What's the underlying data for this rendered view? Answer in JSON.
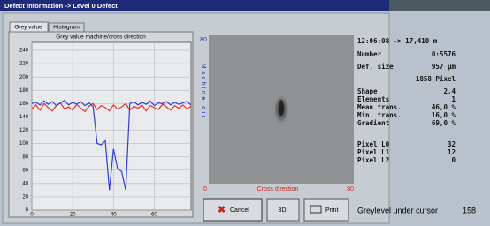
{
  "window": {
    "title": "Defect information  ->  Level 0  Defect"
  },
  "tabs": [
    "Grey value",
    "Histogram"
  ],
  "chart_data": {
    "type": "line",
    "title": "Grey value machine/cross direction",
    "x": [
      0,
      2,
      4,
      6,
      8,
      10,
      12,
      14,
      16,
      18,
      20,
      22,
      24,
      26,
      28,
      30,
      32,
      34,
      36,
      38,
      40,
      42,
      44,
      46,
      48,
      50,
      52,
      54,
      56,
      58,
      60,
      62,
      64,
      66,
      68,
      70,
      72,
      74,
      76,
      78
    ],
    "series": [
      {
        "color": "#e03030",
        "values": [
          152,
          158,
          150,
          160,
          154,
          149,
          157,
          161,
          152,
          155,
          150,
          159,
          153,
          148,
          156,
          160,
          151,
          157,
          154,
          149,
          158,
          152,
          155,
          160,
          150,
          156,
          153,
          158,
          149,
          157,
          154,
          151,
          159,
          155,
          150,
          157,
          153,
          158,
          152,
          156
        ]
      },
      {
        "color": "#3040d0",
        "values": [
          160,
          162,
          158,
          164,
          159,
          163,
          157,
          161,
          165,
          158,
          162,
          159,
          163,
          157,
          161,
          156,
          100,
          98,
          104,
          30,
          92,
          62,
          58,
          30,
          160,
          163,
          158,
          162,
          159,
          164,
          157,
          161,
          160,
          163,
          158,
          162,
          159,
          161,
          163,
          158
        ]
      }
    ],
    "xlim": [
      0,
      78
    ],
    "xticks": [
      0,
      20,
      40,
      60
    ],
    "ylim": [
      0,
      252
    ],
    "yticks": [
      0,
      20,
      40,
      60,
      80,
      100,
      120,
      140,
      160,
      180,
      200,
      220,
      240
    ],
    "grid": true
  },
  "image_panel": {
    "top_label": "80",
    "side_label": "Machine dir",
    "x_start": "0",
    "x_label": "Cross direction",
    "x_end": "80"
  },
  "info": {
    "time": "12:06:08 -> 17,410 m",
    "rows": [
      {
        "label": "Number",
        "value": "0:5576"
      },
      {
        "label": "Def. size",
        "value": "957 µm"
      },
      {
        "value": "1858 Pixel"
      },
      {
        "label": "Shape",
        "value": "2,4"
      },
      {
        "label": "Elements",
        "value": "1"
      },
      {
        "label": "Mean trans.",
        "value": "46,0 %"
      },
      {
        "label": "Min. trans.",
        "value": "16,0 %"
      },
      {
        "label": "Gradient",
        "value": "69,0 %"
      },
      {
        "label": "Pixel L0",
        "value": "32"
      },
      {
        "label": "Pixel L1",
        "value": "12"
      },
      {
        "label": "Pixel L2",
        "value": "0"
      }
    ]
  },
  "buttons": [
    "Cancel",
    "3D!",
    "Print"
  ],
  "status": {
    "label": "Greylevel under cursor",
    "value": 158
  }
}
